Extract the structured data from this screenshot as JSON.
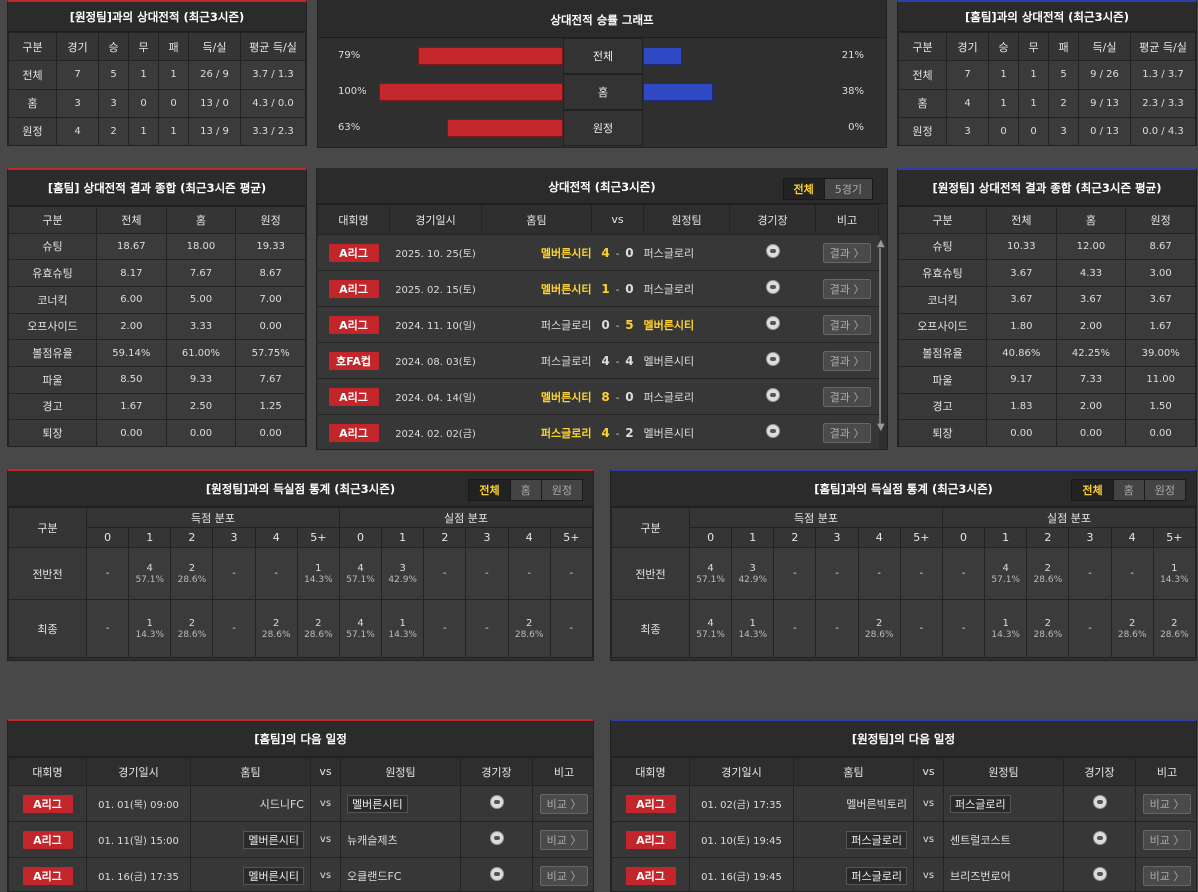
{
  "h2h_away": {
    "title": "[원정팀]과의 상대전적 (최근3시즌)",
    "headers": [
      "구분",
      "경기",
      "승",
      "무",
      "패",
      "득/실",
      "평균 득/실"
    ],
    "rows": [
      [
        "전체",
        "7",
        "5",
        "1",
        "1",
        "26 / 9",
        "3.7 / 1.3"
      ],
      [
        "홈",
        "3",
        "3",
        "0",
        "0",
        "13 / 0",
        "4.3 / 0.0"
      ],
      [
        "원정",
        "4",
        "2",
        "1",
        "1",
        "13 / 9",
        "3.3 / 2.3"
      ]
    ]
  },
  "graph": {
    "title": "상대전적 승률 그래프",
    "rows": [
      {
        "left_pct": "79%",
        "label": "전체",
        "right_pct": "21%",
        "left": 79,
        "right": 21
      },
      {
        "left_pct": "100%",
        "label": "홈",
        "right_pct": "38%",
        "left": 100,
        "right": 38
      },
      {
        "left_pct": "63%",
        "label": "원정",
        "right_pct": "0%",
        "left": 63,
        "right": 0
      }
    ],
    "colors": {
      "home": "#c4282c",
      "away": "#2f4ac4"
    }
  },
  "h2h_home": {
    "title": "[홈팀]과의 상대전적 (최근3시즌)",
    "headers": [
      "구분",
      "경기",
      "승",
      "무",
      "패",
      "득/실",
      "평균 득/실"
    ],
    "rows": [
      [
        "전체",
        "7",
        "1",
        "1",
        "5",
        "9 / 26",
        "1.3 / 3.7"
      ],
      [
        "홈",
        "4",
        "1",
        "1",
        "2",
        "9 / 13",
        "2.3 / 3.3"
      ],
      [
        "원정",
        "3",
        "0",
        "0",
        "3",
        "0 / 13",
        "0.0 / 4.3"
      ]
    ]
  },
  "sum_home": {
    "title": "[홈팀] 상대전적 결과 종합 (최근3시즌 평균)",
    "headers": [
      "구분",
      "전체",
      "홈",
      "원정"
    ],
    "rows": [
      [
        "슈팅",
        "18.67",
        "18.00",
        "19.33"
      ],
      [
        "유효슈팅",
        "8.17",
        "7.67",
        "8.67"
      ],
      [
        "코너킥",
        "6.00",
        "5.00",
        "7.00"
      ],
      [
        "오프사이드",
        "2.00",
        "3.33",
        "0.00"
      ],
      [
        "볼점유율",
        "59.14%",
        "61.00%",
        "57.75%"
      ],
      [
        "파울",
        "8.50",
        "9.33",
        "7.67"
      ],
      [
        "경고",
        "1.67",
        "2.50",
        "1.25"
      ],
      [
        "퇴장",
        "0.00",
        "0.00",
        "0.00"
      ]
    ]
  },
  "sum_away": {
    "title": "[원정팀] 상대전적 결과 종합 (최근3시즌 평균)",
    "headers": [
      "구분",
      "전체",
      "홈",
      "원정"
    ],
    "rows": [
      [
        "슈팅",
        "10.33",
        "12.00",
        "8.67"
      ],
      [
        "유효슈팅",
        "3.67",
        "4.33",
        "3.00"
      ],
      [
        "코너킥",
        "3.67",
        "3.67",
        "3.67"
      ],
      [
        "오프사이드",
        "1.80",
        "2.00",
        "1.67"
      ],
      [
        "볼점유율",
        "40.86%",
        "42.25%",
        "39.00%"
      ],
      [
        "파울",
        "9.17",
        "7.33",
        "11.00"
      ],
      [
        "경고",
        "1.83",
        "2.00",
        "1.50"
      ],
      [
        "퇴장",
        "0.00",
        "0.00",
        "0.00"
      ]
    ]
  },
  "matches": {
    "title": "상대전적 (최근3시즌)",
    "tabs": [
      "전체",
      "5경기"
    ],
    "headers": [
      "대회명",
      "경기일시",
      "홈팀",
      "vs",
      "원정팀",
      "경기장",
      "비고"
    ],
    "btn": "결과 〉",
    "rows": [
      {
        "league": "A리그",
        "date": "2025. 10. 25(토)",
        "home": "멜버른시티",
        "hs": "4",
        "sep": "-",
        "as": "0",
        "away": "퍼스글로리",
        "win": "home"
      },
      {
        "league": "A리그",
        "date": "2025. 02. 15(토)",
        "home": "멜버른시티",
        "hs": "1",
        "sep": "-",
        "as": "0",
        "away": "퍼스글로리",
        "win": "home"
      },
      {
        "league": "A리그",
        "date": "2024. 11. 10(일)",
        "home": "퍼스글로리",
        "hs": "0",
        "sep": "-",
        "as": "5",
        "away": "멜버른시티",
        "win": "away"
      },
      {
        "league": "호FA컵",
        "date": "2024. 08. 03(토)",
        "home": "퍼스글로리",
        "hs": "4",
        "sep": "-",
        "as": "4",
        "away": "멜버른시티",
        "win": "draw"
      },
      {
        "league": "A리그",
        "date": "2024. 04. 14(일)",
        "home": "멜버른시티",
        "hs": "8",
        "sep": "-",
        "as": "0",
        "away": "퍼스글로리",
        "win": "home"
      },
      {
        "league": "A리그",
        "date": "2024. 02. 02(금)",
        "home": "퍼스글로리",
        "hs": "4",
        "sep": "-",
        "as": "2",
        "away": "멜버른시티",
        "win": "home"
      }
    ]
  },
  "gs_away": {
    "title": "[원정팀]과의 득실점 통계 (최근3시즌)",
    "tabs": [
      "전체",
      "홈",
      "원정"
    ],
    "col_head": "구분",
    "scored": "득점 분포",
    "conceded": "실점 분포",
    "cols": [
      "0",
      "1",
      "2",
      "3",
      "4",
      "5+"
    ],
    "rows": [
      {
        "label": "전반전",
        "cells": [
          [
            "-",
            ""
          ],
          [
            "4",
            "57.1%"
          ],
          [
            "2",
            "28.6%"
          ],
          [
            "-",
            ""
          ],
          [
            "-",
            ""
          ],
          [
            "1",
            "14.3%"
          ],
          [
            "4",
            "57.1%"
          ],
          [
            "3",
            "42.9%"
          ],
          [
            "-",
            ""
          ],
          [
            "-",
            ""
          ],
          [
            "-",
            ""
          ],
          [
            "-",
            ""
          ]
        ]
      },
      {
        "label": "최종",
        "cells": [
          [
            "-",
            ""
          ],
          [
            "1",
            "14.3%"
          ],
          [
            "2",
            "28.6%"
          ],
          [
            "-",
            ""
          ],
          [
            "2",
            "28.6%"
          ],
          [
            "2",
            "28.6%"
          ],
          [
            "4",
            "57.1%"
          ],
          [
            "1",
            "14.3%"
          ],
          [
            "-",
            ""
          ],
          [
            "-",
            ""
          ],
          [
            "2",
            "28.6%"
          ],
          [
            "-",
            ""
          ]
        ]
      }
    ]
  },
  "gs_home": {
    "title": "[홈팀]과의 득실점 통계 (최근3시즌)",
    "tabs": [
      "전체",
      "홈",
      "원정"
    ],
    "col_head": "구분",
    "scored": "득점 분포",
    "conceded": "실점 분포",
    "cols": [
      "0",
      "1",
      "2",
      "3",
      "4",
      "5+"
    ],
    "rows": [
      {
        "label": "전반전",
        "cells": [
          [
            "4",
            "57.1%"
          ],
          [
            "3",
            "42.9%"
          ],
          [
            "-",
            ""
          ],
          [
            "-",
            ""
          ],
          [
            "-",
            ""
          ],
          [
            "-",
            ""
          ],
          [
            "-",
            ""
          ],
          [
            "4",
            "57.1%"
          ],
          [
            "2",
            "28.6%"
          ],
          [
            "-",
            ""
          ],
          [
            "-",
            ""
          ],
          [
            "1",
            "14.3%"
          ]
        ]
      },
      {
        "label": "최종",
        "cells": [
          [
            "4",
            "57.1%"
          ],
          [
            "1",
            "14.3%"
          ],
          [
            "-",
            ""
          ],
          [
            "-",
            ""
          ],
          [
            "2",
            "28.6%"
          ],
          [
            "-",
            ""
          ],
          [
            "-",
            ""
          ],
          [
            "1",
            "14.3%"
          ],
          [
            "2",
            "28.6%"
          ],
          [
            "-",
            ""
          ],
          [
            "2",
            "28.6%"
          ],
          [
            "2",
            "28.6%"
          ]
        ]
      }
    ]
  },
  "next_home": {
    "title": "[홈팀]의 다음 일정",
    "headers": [
      "대회명",
      "경기일시",
      "홈팀",
      "vs",
      "원정팀",
      "경기장",
      "비고"
    ],
    "btn": "비교 〉",
    "rows": [
      {
        "league": "A리그",
        "date": "01. 01(목) 09:00",
        "home": "시드니FC",
        "vs": "vs",
        "away": "멜버른시티",
        "box": "away"
      },
      {
        "league": "A리그",
        "date": "01. 11(일) 15:00",
        "home": "멜버른시티",
        "vs": "vs",
        "away": "뉴캐슬제츠",
        "box": "home"
      },
      {
        "league": "A리그",
        "date": "01. 16(금) 17:35",
        "home": "멜버른시티",
        "vs": "vs",
        "away": "오클랜드FC",
        "box": "home"
      }
    ]
  },
  "next_away": {
    "title": "[원정팀]의 다음 일정",
    "headers": [
      "대회명",
      "경기일시",
      "홈팀",
      "vs",
      "원정팀",
      "경기장",
      "비고"
    ],
    "btn": "비교 〉",
    "rows": [
      {
        "league": "A리그",
        "date": "01. 02(금) 17:35",
        "home": "멜버른빅토리",
        "vs": "vs",
        "away": "퍼스글로리",
        "box": "away"
      },
      {
        "league": "A리그",
        "date": "01. 10(토) 19:45",
        "home": "퍼스글로리",
        "vs": "vs",
        "away": "센트럴코스트",
        "box": "home"
      },
      {
        "league": "A리그",
        "date": "01. 16(금) 19:45",
        "home": "퍼스글로리",
        "vs": "vs",
        "away": "브리즈번로어",
        "box": "home"
      }
    ]
  }
}
